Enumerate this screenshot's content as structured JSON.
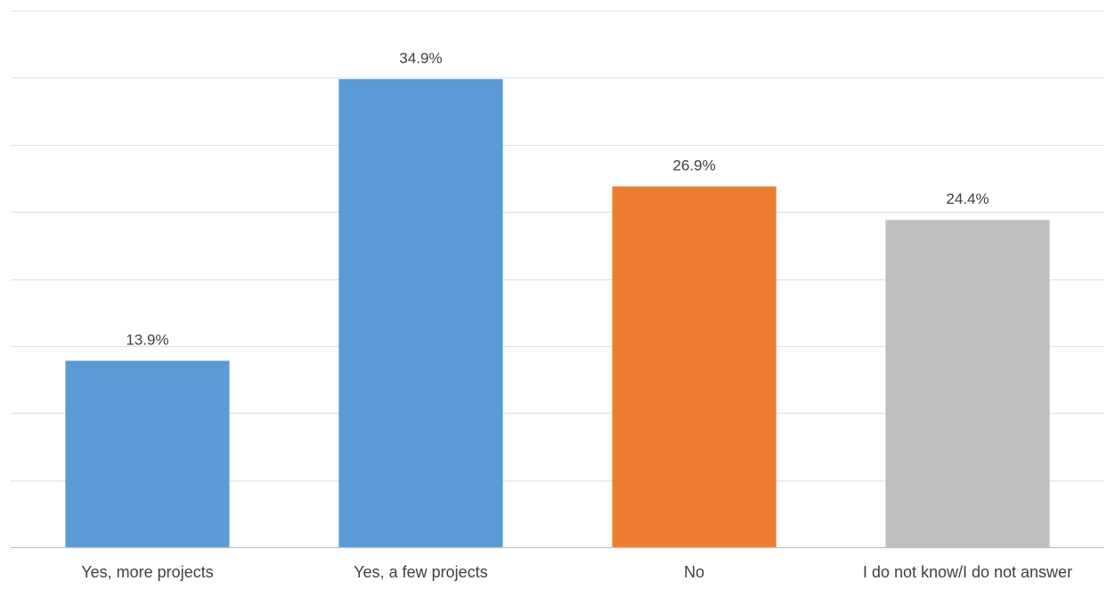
{
  "chart_data": {
    "type": "bar",
    "title": "",
    "xlabel": "",
    "ylabel": "",
    "categories": [
      "Yes, more projects",
      "Yes, a few projects",
      "No",
      "I do not know/I do not answer"
    ],
    "values": [
      13.9,
      34.9,
      26.9,
      24.4
    ],
    "data_labels": [
      "13.9%",
      "34.9%",
      "26.9%",
      "24.4%"
    ],
    "ylim": [
      0,
      40
    ],
    "y_gridline_step": 5,
    "grid": true,
    "legend": "none",
    "colors": [
      "#5B9BD5",
      "#5B9BD5",
      "#ED7D31",
      "#BFBFBF"
    ],
    "gridline_color": "#D9E5F1",
    "axis_color": "#BFBFBF",
    "label_color": "#404040"
  }
}
